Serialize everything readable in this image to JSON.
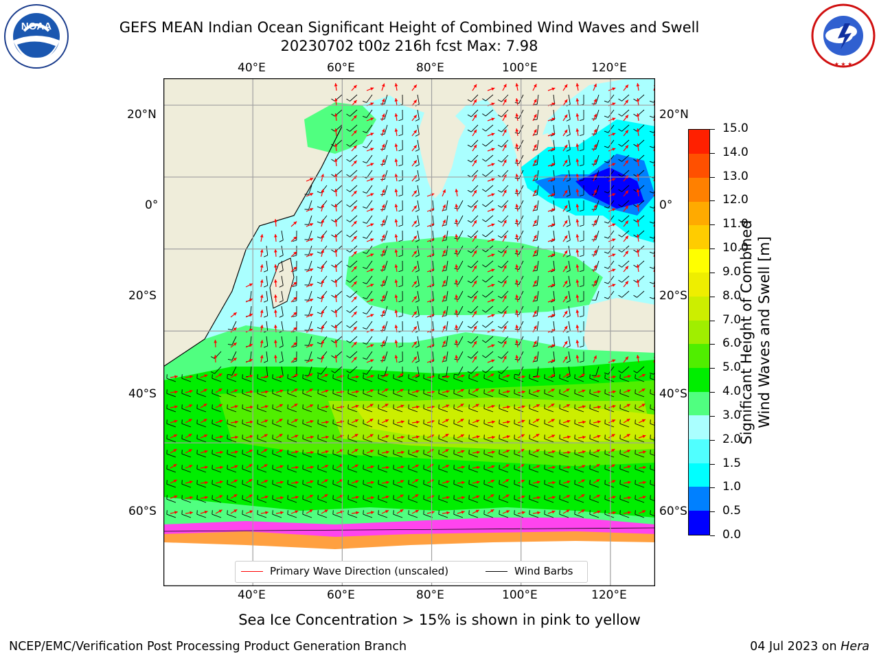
{
  "header": {
    "title_line1": "GEFS MEAN Indian Ocean Significant Height of Combined Wind Waves and Swell",
    "title_line2": "20230702 t00z 216h fcst   Max: 7.98"
  },
  "logos": {
    "left": {
      "text": "NOAA",
      "ring_text": "NATIONAL OCEANIC AND ATMOSPHERIC ADMINISTRATION",
      "ring_text_bottom": "U.S. DEPARTMENT OF COMMERCE"
    },
    "right": {
      "ring_text": "NATIONAL WEATHER SERVICE"
    }
  },
  "map": {
    "lon_labels": [
      "40°E",
      "60°E",
      "80°E",
      "100°E",
      "120°E"
    ],
    "lat_labels": [
      "20°N",
      "0°",
      "20°S",
      "40°S",
      "60°S"
    ],
    "lon_range": [
      20,
      130
    ],
    "lat_range": [
      -75,
      27
    ],
    "legend": {
      "wave_label": "Primary Wave Direction (unscaled)",
      "barb_label": "Wind Barbs",
      "wave_color": "#ff0000",
      "barb_color": "#000000"
    },
    "colors": {
      "land": "#efedda",
      "ice_free_ocean_cyan": "#aaffff",
      "ice_pink": "#ff44ee",
      "ice_orange": "#ffa040"
    }
  },
  "colorbar": {
    "label_line1": "Significant Height of Combined",
    "label_line2": "Wind Waves and Swell [m]",
    "ticks": [
      "0.0",
      "0.5",
      "1.0",
      "1.5",
      "2.0",
      "3.0",
      "4.0",
      "5.0",
      "6.0",
      "7.0",
      "8.0",
      "9.0",
      "10.0",
      "11.0",
      "12.0",
      "13.0",
      "14.0",
      "15.0"
    ],
    "colors": [
      "#0000ff",
      "#0080ff",
      "#00ffff",
      "#50ffff",
      "#aaffff",
      "#50ff80",
      "#00ee00",
      "#50ee00",
      "#a0ee00",
      "#ccee00",
      "#eeee00",
      "#ffff00",
      "#ffcc00",
      "#ffaa00",
      "#ff8000",
      "#ff5000",
      "#ff2000"
    ]
  },
  "note": "Sea Ice Concentration > 15% is shown in pink to yellow",
  "footer": {
    "left": "NCEP/EMC/Verification Post Processing Product Generation Branch",
    "right_date": "04 Jul 2023 on ",
    "right_host": "Hera"
  }
}
